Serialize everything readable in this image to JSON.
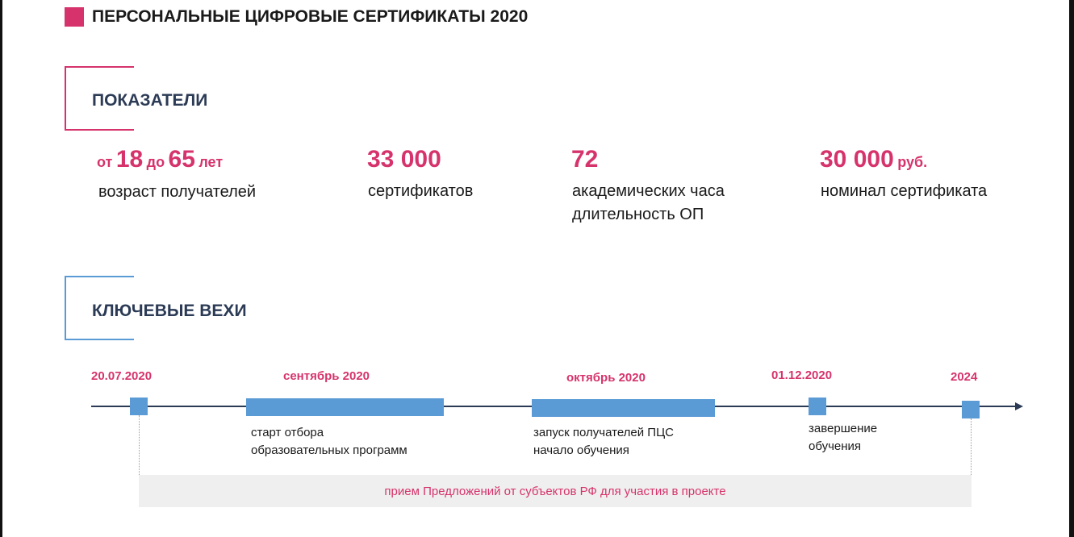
{
  "title": "ПЕРСОНАЛЬНЫЕ ЦИФРОВЫЕ СЕРТИФИКАТЫ 2020",
  "indicators_section": "ПОКАЗАТЕЛИ",
  "milestones_section": "КЛЮЧЕВЫЕ ВЕХИ",
  "stats": {
    "age": {
      "from": "от",
      "min": "18",
      "to": "до",
      "max": "65",
      "unit": "лет",
      "desc": "возраст получателей"
    },
    "certs": {
      "value": "33 000",
      "desc": "сертификатов"
    },
    "hours": {
      "value": "72",
      "desc_line1": "академических часа",
      "desc_line2": "длительность ОП"
    },
    "nominal": {
      "value": "30 000",
      "unit": "руб.",
      "desc": "номинал сертификата"
    }
  },
  "timeline": {
    "dates": [
      "20.07.2020",
      "сентябрь 2020",
      "октябрь 2020",
      "01.12.2020",
      "2024"
    ],
    "milestones": [
      {
        "line1": "старт отбора",
        "line2": "образовательных программ"
      },
      {
        "line1": "запуск получателей ПЦС",
        "line2": "начало обучения"
      },
      {
        "line1": "завершение",
        "line2": "обучения"
      }
    ],
    "band": "прием Предложений от субъектов РФ для участия в проекте"
  },
  "colors": {
    "accent": "#d6336c",
    "blue": "#5b9bd5",
    "navy": "#2b3a55"
  }
}
